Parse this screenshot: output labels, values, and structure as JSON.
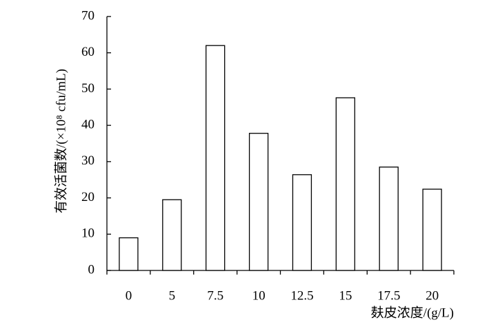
{
  "chart_data": {
    "type": "bar",
    "x_label": "麸皮浓度/(g/L)",
    "y_label": "有效活菌数/(×10⁸ cfu/mL)",
    "categories": [
      "0",
      "5",
      "7.5",
      "10",
      "12.5",
      "15",
      "17.5",
      "20"
    ],
    "values": [
      9,
      19.5,
      62,
      37.8,
      26.4,
      47.6,
      28.5,
      22.4
    ],
    "color": "#ffffff",
    "ylim": [
      0,
      70
    ],
    "yticks": [
      0,
      10,
      20,
      30,
      40,
      50,
      60,
      70
    ],
    "grid": false
  }
}
